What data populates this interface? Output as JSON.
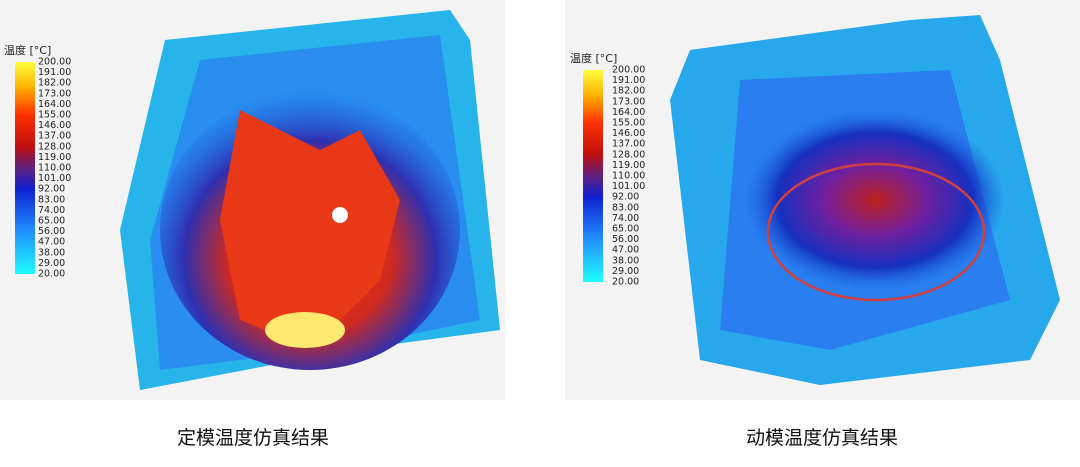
{
  "panels": [
    {
      "legend_title": "温度 [°C]",
      "legend_labels": [
        "200.00",
        "191.00",
        "182.00",
        "173.00",
        "164.00",
        "155.00",
        "146.00",
        "137.00",
        "128.00",
        "119.00",
        "110.00",
        "101.00",
        "92.00",
        "83.00",
        "74.00",
        "65.00",
        "56.00",
        "47.00",
        "38.00",
        "29.00",
        "20.00"
      ],
      "caption": "定模温度仿真结果"
    },
    {
      "legend_title": "温度 [°C]",
      "legend_labels": [
        "200.00",
        "191.00",
        "182.00",
        "173.00",
        "164.00",
        "155.00",
        "146.00",
        "137.00",
        "128.00",
        "119.00",
        "110.00",
        "101.00",
        "92.00",
        "83.00",
        "74.00",
        "65.00",
        "56.00",
        "47.00",
        "38.00",
        "29.00",
        "20.00"
      ],
      "caption": "动模温度仿真结果"
    }
  ]
}
